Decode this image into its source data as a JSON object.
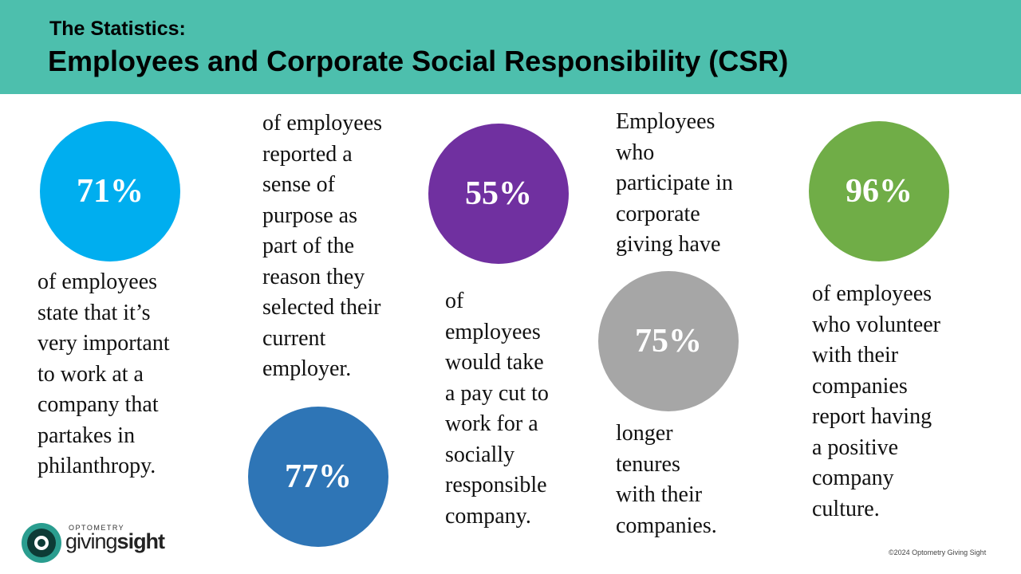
{
  "header": {
    "subtitle": "The Statistics:",
    "title": "Employees and Corporate Social Responsibility (CSR)"
  },
  "stats": [
    {
      "value": "71%",
      "lines": [
        "of employees",
        "state that it’s",
        "very important",
        "to work at a",
        "company that",
        "partakes in",
        "philanthropy."
      ]
    },
    {
      "value": "77%",
      "lines": [
        "of employees",
        "reported a",
        "sense of",
        "purpose as",
        "part of the",
        "reason they",
        "selected their",
        "current",
        "employer."
      ]
    },
    {
      "value": "55%",
      "lines": [
        "of",
        "employees",
        "would take",
        "a pay cut to",
        "work for a",
        "socially",
        "responsible",
        "company."
      ]
    },
    {
      "value": "75%",
      "lines_before": [
        "Employees",
        "who",
        "participate in",
        "corporate",
        "giving have"
      ],
      "lines_after": [
        "longer",
        "tenures",
        "with their",
        "companies."
      ]
    },
    {
      "value": "96%",
      "lines": [
        "of employees",
        "who volunteer",
        "with their",
        "companies",
        "report having",
        "a positive",
        "company",
        "culture."
      ]
    }
  ],
  "logo": {
    "top": "OPTOMETRY",
    "word1": "giving",
    "word2": "sight"
  },
  "footer": {
    "copyright": "©2024 Optometry Giving Sight"
  }
}
